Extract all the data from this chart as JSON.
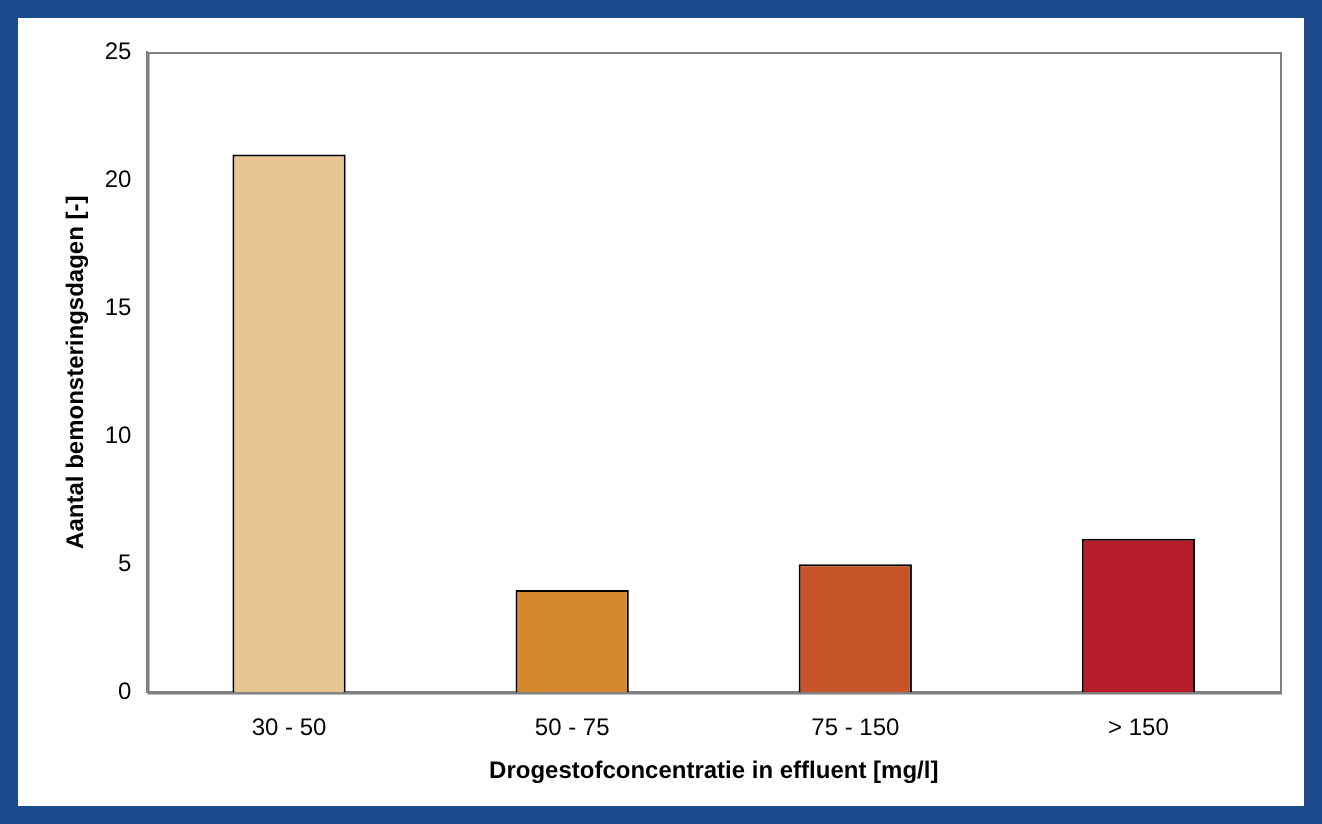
{
  "chart_data": {
    "type": "bar",
    "xlabel": "Drogestofconcentratie in effluent [mg/l]",
    "ylabel": "Aantal bemonsteringsdagen [-]",
    "categories": [
      "30 - 50",
      "50 - 75",
      "75 - 150",
      "> 150"
    ],
    "values": [
      21,
      4,
      5,
      6
    ],
    "colors": [
      "#e8c490",
      "#d4892e",
      "#c8552a",
      "#b81c2a"
    ],
    "ylim": [
      0,
      25
    ],
    "yticks": [
      0,
      5,
      10,
      15,
      20,
      25
    ],
    "grid": false,
    "legend": false
  }
}
